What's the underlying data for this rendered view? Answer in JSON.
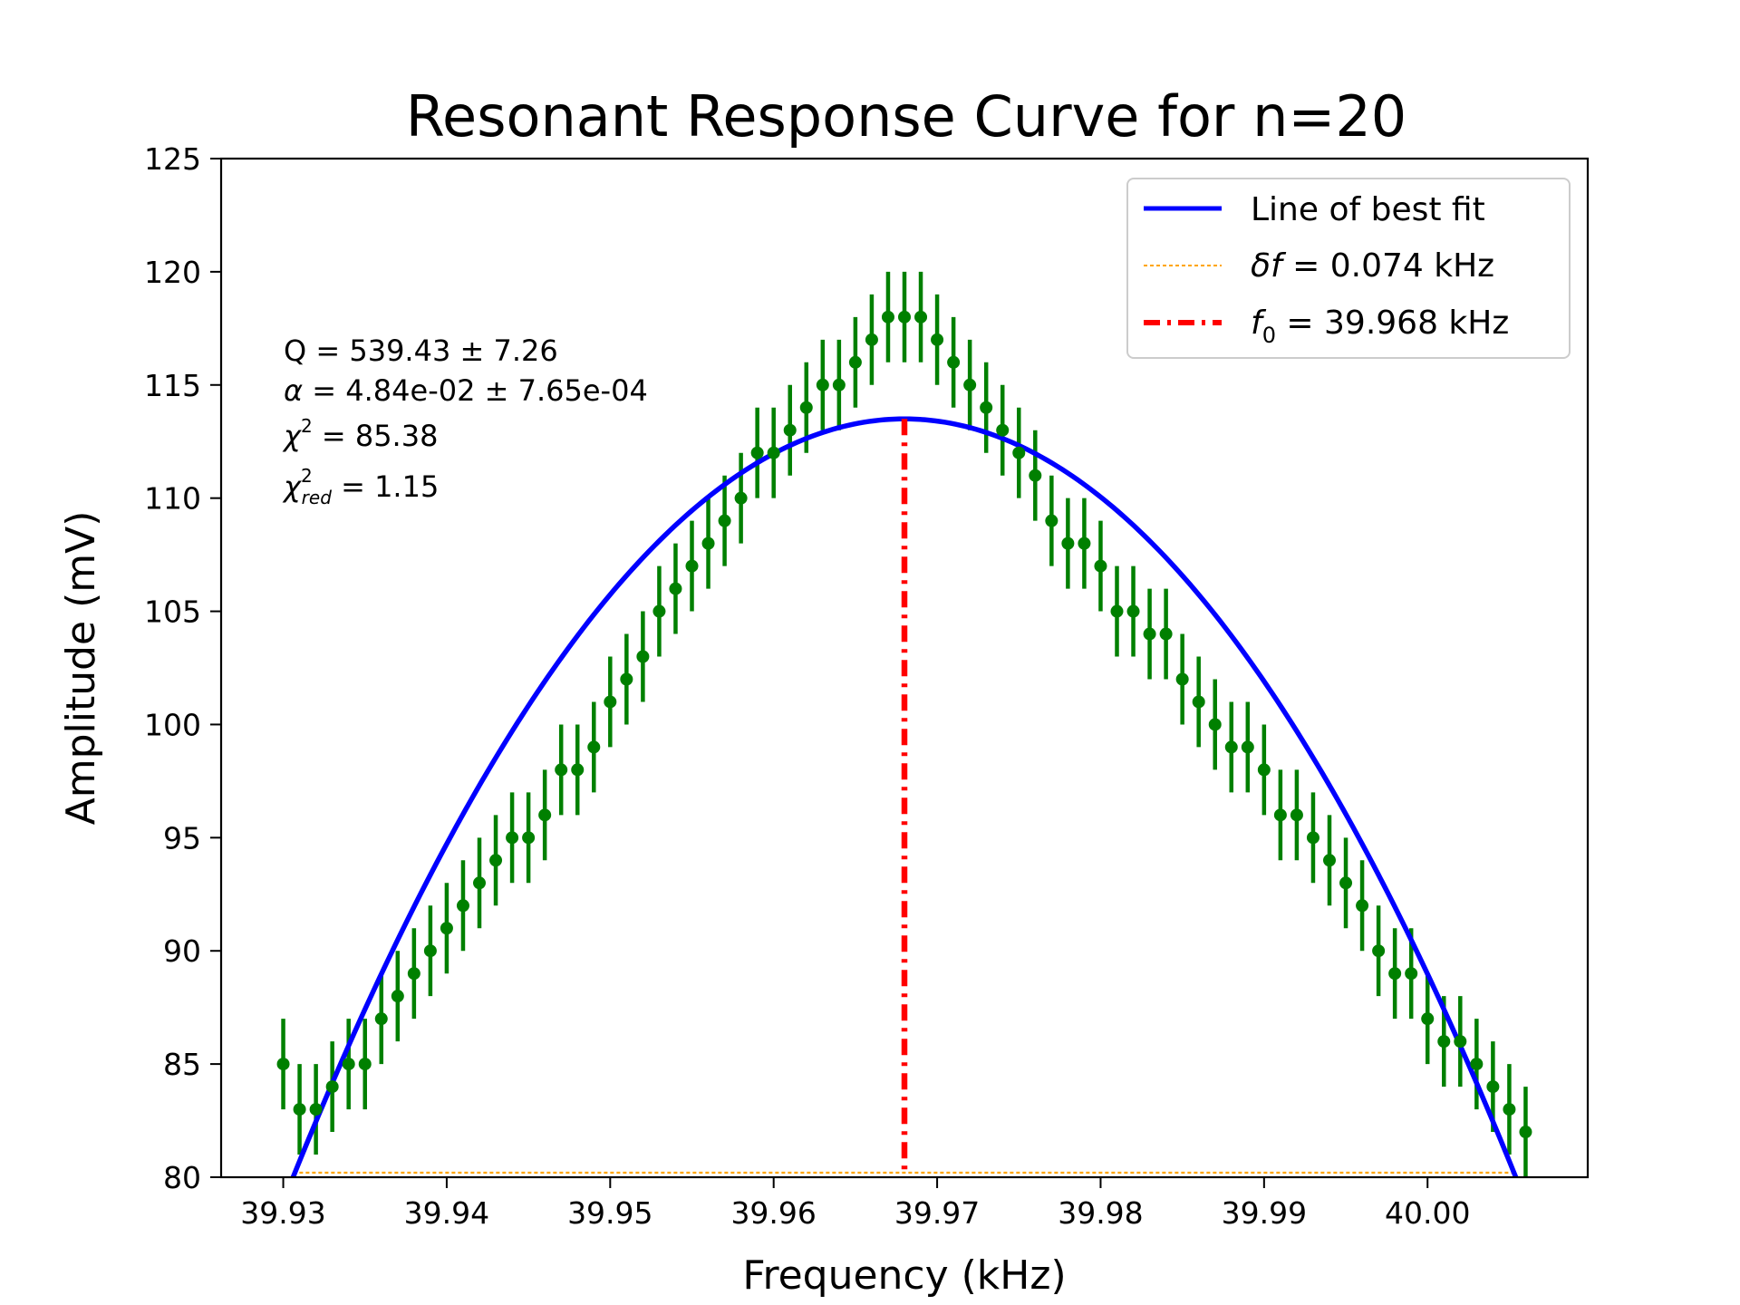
{
  "chart_data": {
    "type": "scatter",
    "title": "Resonant Response Curve for n=20",
    "xlabel": "Frequency (kHz)",
    "ylabel": "Amplitude (mV)",
    "xlim": [
      39.9262,
      40.0098
    ],
    "ylim": [
      80,
      125
    ],
    "xticks": [
      39.93,
      39.94,
      39.95,
      39.96,
      39.97,
      39.98,
      39.99,
      40.0
    ],
    "xtick_labels": [
      "39.93",
      "39.94",
      "39.95",
      "39.96",
      "39.97",
      "39.98",
      "39.99",
      "40.00"
    ],
    "yticks": [
      80,
      85,
      90,
      95,
      100,
      105,
      110,
      115,
      120,
      125
    ],
    "ytick_labels": [
      "80",
      "85",
      "90",
      "95",
      "100",
      "105",
      "110",
      "115",
      "120",
      "125"
    ],
    "grid": false,
    "legend_position": "top-right",
    "colors": {
      "data": "#008000",
      "fit": "#0000ff",
      "delta_f": "#ffa500",
      "f0": "#ff0000"
    },
    "legend": [
      {
        "key": "fit",
        "label": "Line of best fit",
        "style": "solid"
      },
      {
        "key": "delta_f",
        "label_var": "δf",
        "label_rest": " = 0.074 kHz",
        "style": "dotted"
      },
      {
        "key": "f0",
        "label_var": "f",
        "label_sub": "0",
        "label_rest": " = 39.968 kHz",
        "style": "dashdot"
      }
    ],
    "annotations": {
      "q": "Q = 539.43 ± 7.26",
      "alpha_sym": "α",
      "alpha_rest": " = 4.84e-02 ± 7.65e-04",
      "chi_sym": "χ",
      "chi_sup": "2",
      "chi_rest": " = 85.38",
      "chired_sym": "χ",
      "chired_sup": "2",
      "chired_sub": "red",
      "chired_rest": " = 1.15"
    },
    "series": [
      {
        "name": "data",
        "type": "errorbar",
        "x_start": 39.93,
        "x_step": 0.001,
        "y": [
          85,
          83,
          83,
          84,
          85,
          85,
          87,
          88,
          89,
          90,
          91,
          92,
          93,
          94,
          95,
          95,
          96,
          98,
          98,
          99,
          101,
          102,
          103,
          105,
          106,
          107,
          108,
          109,
          110,
          112,
          112,
          113,
          114,
          115,
          115,
          116,
          117,
          118,
          118,
          118,
          117,
          116,
          115,
          114,
          113,
          112,
          111,
          109,
          108,
          108,
          107,
          105,
          105,
          104,
          104,
          102,
          101,
          100,
          99,
          99,
          98,
          96,
          96,
          95,
          94,
          93,
          92,
          90,
          89,
          89,
          87,
          86,
          86,
          85,
          84,
          83,
          82
        ],
        "yerr": 2
      },
      {
        "name": "Line of best fit",
        "type": "line",
        "f0": 39.968,
        "peak": 113.5,
        "x_range": [
          39.9306,
          40.0054
        ],
        "samples": [
          [
            39.9306,
            80.0
          ],
          [
            39.9346,
            85.2
          ],
          [
            39.9386,
            90.7
          ],
          [
            39.9426,
            95.9
          ],
          [
            39.9466,
            100.9
          ],
          [
            39.9506,
            105.0
          ],
          [
            39.9546,
            108.4
          ],
          [
            39.9586,
            111.0
          ],
          [
            39.9626,
            112.7
          ],
          [
            39.9666,
            113.4
          ],
          [
            39.968,
            113.5
          ],
          [
            39.9706,
            113.3
          ],
          [
            39.9746,
            112.3
          ],
          [
            39.9786,
            110.2
          ],
          [
            39.9826,
            107.0
          ],
          [
            39.9866,
            102.9
          ],
          [
            39.9906,
            98.0
          ],
          [
            39.9946,
            92.5
          ],
          [
            39.9986,
            86.8
          ],
          [
            40.0026,
            83.3
          ],
          [
            40.0054,
            80.0
          ]
        ]
      },
      {
        "name": "δf = 0.074 kHz",
        "type": "hline",
        "y": 80.2,
        "x_range": [
          39.9306,
          40.0054
        ]
      },
      {
        "name": "f0 = 39.968 kHz",
        "type": "vline",
        "x": 39.968,
        "y_range": [
          80,
          113.5
        ]
      }
    ]
  }
}
